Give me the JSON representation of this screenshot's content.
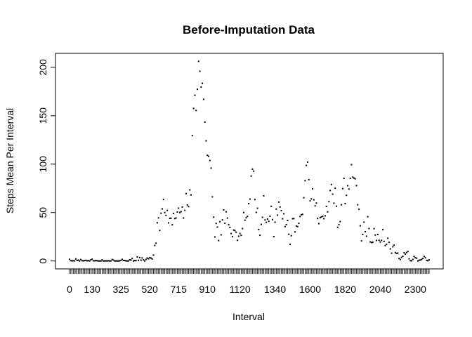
{
  "chart_data": {
    "type": "scatter",
    "title": "Before-Imputation Data",
    "x_label": "Interval",
    "y_label": "Steps Mean Per Interval",
    "color": "#000000",
    "categories": [
      "0",
      null,
      null,
      null,
      null,
      null,
      null,
      null,
      null,
      null,
      null,
      null,
      null,
      null,
      null,
      null,
      null,
      null,
      "130",
      null,
      null,
      null,
      null,
      null,
      null,
      null,
      null,
      null,
      null,
      null,
      null,
      null,
      null,
      null,
      null,
      null,
      null,
      null,
      null,
      null,
      null,
      "325",
      null,
      null,
      null,
      null,
      null,
      null,
      null,
      null,
      null,
      null,
      null,
      null,
      null,
      null,
      null,
      null,
      null,
      null,
      null,
      null,
      null,
      null,
      "520",
      null,
      null,
      null,
      null,
      null,
      null,
      null,
      null,
      null,
      null,
      null,
      null,
      null,
      null,
      null,
      null,
      null,
      null,
      null,
      null,
      null,
      null,
      "715",
      null,
      null,
      null,
      null,
      null,
      null,
      null,
      null,
      null,
      null,
      null,
      null,
      null,
      null,
      null,
      null,
      null,
      null,
      null,
      null,
      null,
      null,
      "910",
      null,
      null,
      null,
      null,
      null,
      null,
      null,
      null,
      null,
      null,
      null,
      null,
      null,
      null,
      null,
      null,
      null,
      null,
      null,
      null,
      null,
      null,
      null,
      null,
      null,
      "1120",
      null,
      null,
      null,
      null,
      null,
      null,
      null,
      null,
      null,
      null,
      null,
      null,
      null,
      null,
      null,
      null,
      null,
      null,
      null,
      null,
      null,
      null,
      null,
      null,
      null,
      null,
      null,
      "1340",
      null,
      null,
      null,
      null,
      null,
      null,
      null,
      null,
      null,
      null,
      null,
      null,
      null,
      null,
      null,
      null,
      null,
      null,
      null,
      null,
      null,
      null,
      null,
      null,
      null,
      null,
      null,
      "1600",
      null,
      null,
      null,
      null,
      null,
      null,
      null,
      null,
      null,
      null,
      null,
      null,
      null,
      null,
      null,
      null,
      null,
      null,
      null,
      null,
      null,
      null,
      null,
      null,
      null,
      null,
      null,
      "1820",
      null,
      null,
      null,
      null,
      null,
      null,
      null,
      null,
      null,
      null,
      null,
      null,
      null,
      null,
      null,
      null,
      null,
      null,
      null,
      null,
      null,
      null,
      null,
      null,
      null,
      null,
      null,
      "2040",
      null,
      null,
      null,
      null,
      null,
      null,
      null,
      null,
      null,
      null,
      null,
      null,
      null,
      null,
      null,
      null,
      null,
      null,
      null,
      null,
      null,
      null,
      null,
      null,
      null,
      null,
      null,
      "2300",
      null,
      null,
      null,
      null,
      null,
      null,
      null,
      null,
      null,
      null,
      null
    ],
    "values": [
      1.72,
      0.34,
      0.13,
      0.15,
      0.08,
      2.09,
      0.53,
      0.87,
      0,
      1.47,
      0.3,
      0.13,
      0.32,
      0.68,
      0.15,
      0.34,
      0,
      1.11,
      1.83,
      0.17,
      0.17,
      0.38,
      0.26,
      0,
      0,
      0,
      1.13,
      0,
      0,
      0.13,
      0,
      0.23,
      0,
      0,
      1.55,
      0.94,
      0,
      0,
      0,
      0,
      0.21,
      0.62,
      1.62,
      0.58,
      0.49,
      0.08,
      0,
      0,
      1.19,
      0.94,
      2.57,
      0,
      0.34,
      0.36,
      4.11,
      0.66,
      3.49,
      0.83,
      3.11,
      1.11,
      0,
      1.57,
      3,
      2.25,
      3.32,
      2.96,
      2.09,
      6.06,
      16.02,
      18.34,
      39.45,
      44.49,
      31.49,
      49.26,
      53.77,
      63.45,
      49.96,
      47.08,
      52.15,
      39.34,
      44.02,
      44.17,
      37.36,
      49.04,
      43.81,
      44.38,
      50.51,
      54.51,
      49.92,
      50.98,
      55.68,
      44.32,
      52.26,
      69.55,
      57.85,
      56.15,
      73.38,
      68.21,
      129.43,
      157.53,
      171.15,
      155.4,
      177.3,
      206.17,
      195.92,
      179.57,
      183.4,
      167.02,
      143.45,
      124.04,
      109.11,
      108.11,
      103.72,
      95.96,
      66.21,
      45.23,
      24.79,
      38.75,
      34.98,
      21.06,
      40.57,
      26.98,
      42.42,
      52.66,
      38.92,
      50.79,
      44.28,
      37.42,
      34.7,
      28.34,
      25.09,
      31.94,
      31.36,
      29.68,
      21.32,
      25.55,
      28.38,
      26.47,
      33.43,
      49.98,
      42.04,
      44.6,
      46.04,
      59.19,
      63.87,
      87.7,
      94.85,
      92.77,
      63.4,
      50.17,
      54.47,
      32.42,
      26.53,
      37.74,
      45.06,
      67.28,
      42.34,
      39.89,
      43.26,
      40.98,
      46.25,
      56.43,
      42.75,
      25.13,
      39.96,
      53.55,
      47.32,
      60.81,
      55.75,
      51.96,
      43.58,
      48.7,
      35.47,
      37.55,
      41.85,
      27.51,
      17.11,
      26.08,
      43.62,
      43.77,
      30.02,
      36.08,
      35.49,
      38.85,
      45.96,
      47.75,
      48.13,
      65.32,
      82.91,
      98.66,
      102.11,
      83.96,
      62.13,
      64.13,
      74.55,
      63.17,
      56.91,
      59.77,
      43.87,
      38.57,
      44.66,
      45.45,
      46.21,
      43.68,
      46.62,
      56.3,
      50.72,
      61.23,
      72.72,
      78.94,
      68.94,
      59.66,
      75.09,
      56.51,
      34.77,
      37.45,
      40.68,
      58.02,
      74.7,
      85.32,
      59.26,
      67.77,
      77.7,
      74.25,
      85.34,
      99.45,
      86.58,
      85.6,
      84.87,
      77.83,
      58.04,
      53.36,
      36.32,
      20.72,
      27.4,
      40.02,
      30.21,
      25.55,
      45.66,
      33.53,
      19.62,
      19.02,
      19.34,
      33.34,
      26.81,
      21.17,
      27.3,
      21.34,
      19.55,
      21.32,
      32.3,
      20.15,
      15.94,
      17.23,
      23.45,
      19.25,
      12.45,
      8.02,
      14.66,
      16.3,
      8.68,
      7.79,
      8.13,
      2.62,
      1.45,
      3.68,
      4.81,
      8.51,
      7.08,
      8.7,
      9.75,
      2.21,
      0.32,
      0.11,
      1.6,
      4.6,
      3.3,
      2.85,
      0,
      0.83,
      0.96,
      1.58,
      2.6,
      4.7,
      3.3,
      0.64,
      0.23,
      1.08
    ],
    "ylim": [
      -8.2,
      214.4
    ],
    "yticks": [
      0,
      50,
      100,
      150,
      200
    ],
    "grid": false
  }
}
